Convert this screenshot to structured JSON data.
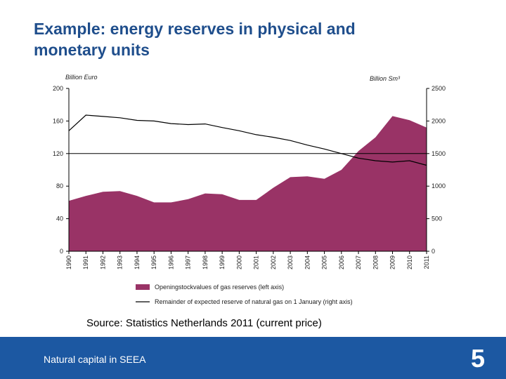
{
  "slide": {
    "title_line1": "Example: energy reserves in physical and",
    "title_line2": "monetary units",
    "source": "Source: Statistics Netherlands 2011 (current price)",
    "footer_text": "Natural capital in SEEA",
    "page_number": "5",
    "footer_color": "#1c58a2",
    "title_color": "#1f4e8c"
  },
  "chart_data": {
    "type": "area",
    "title": "",
    "left_axis_unit": "Billion Euro",
    "right_axis_unit": "Billion Sm³",
    "x": [
      "1990",
      "1991",
      "1992",
      "1993",
      "1994",
      "1995",
      "1996",
      "1997",
      "1998",
      "1999",
      "2000",
      "2001",
      "2002",
      "2003",
      "2004",
      "2005",
      "2006",
      "2007",
      "2008",
      "2009",
      "2010",
      "2011"
    ],
    "left_ylim": [
      0,
      200
    ],
    "left_yticks": [
      0,
      40,
      80,
      120,
      160,
      200
    ],
    "right_ylim": [
      0,
      2500
    ],
    "right_yticks": [
      0,
      500,
      1000,
      1500,
      2000,
      2500
    ],
    "reference_line_left": 120,
    "grid": false,
    "legend_position": "bottom",
    "series": [
      {
        "name": "Openingstockvalues of gas reserves (left axis)",
        "type": "area",
        "axis": "left",
        "color": "#993366",
        "values": [
          62,
          68,
          73,
          74,
          68,
          60,
          60,
          64,
          71,
          70,
          63,
          63,
          78,
          91,
          92,
          89,
          100,
          123,
          140,
          166,
          161,
          152
        ]
      },
      {
        "name": "Remainder of expected reserve of natural gas on 1 January (right axis)",
        "type": "line",
        "axis": "right",
        "color": "#000000",
        "values": [
          1850,
          2090,
          2070,
          2050,
          2010,
          2000,
          1960,
          1945,
          1955,
          1900,
          1850,
          1790,
          1750,
          1700,
          1630,
          1570,
          1500,
          1430,
          1390,
          1370,
          1390,
          1320
        ]
      }
    ]
  }
}
